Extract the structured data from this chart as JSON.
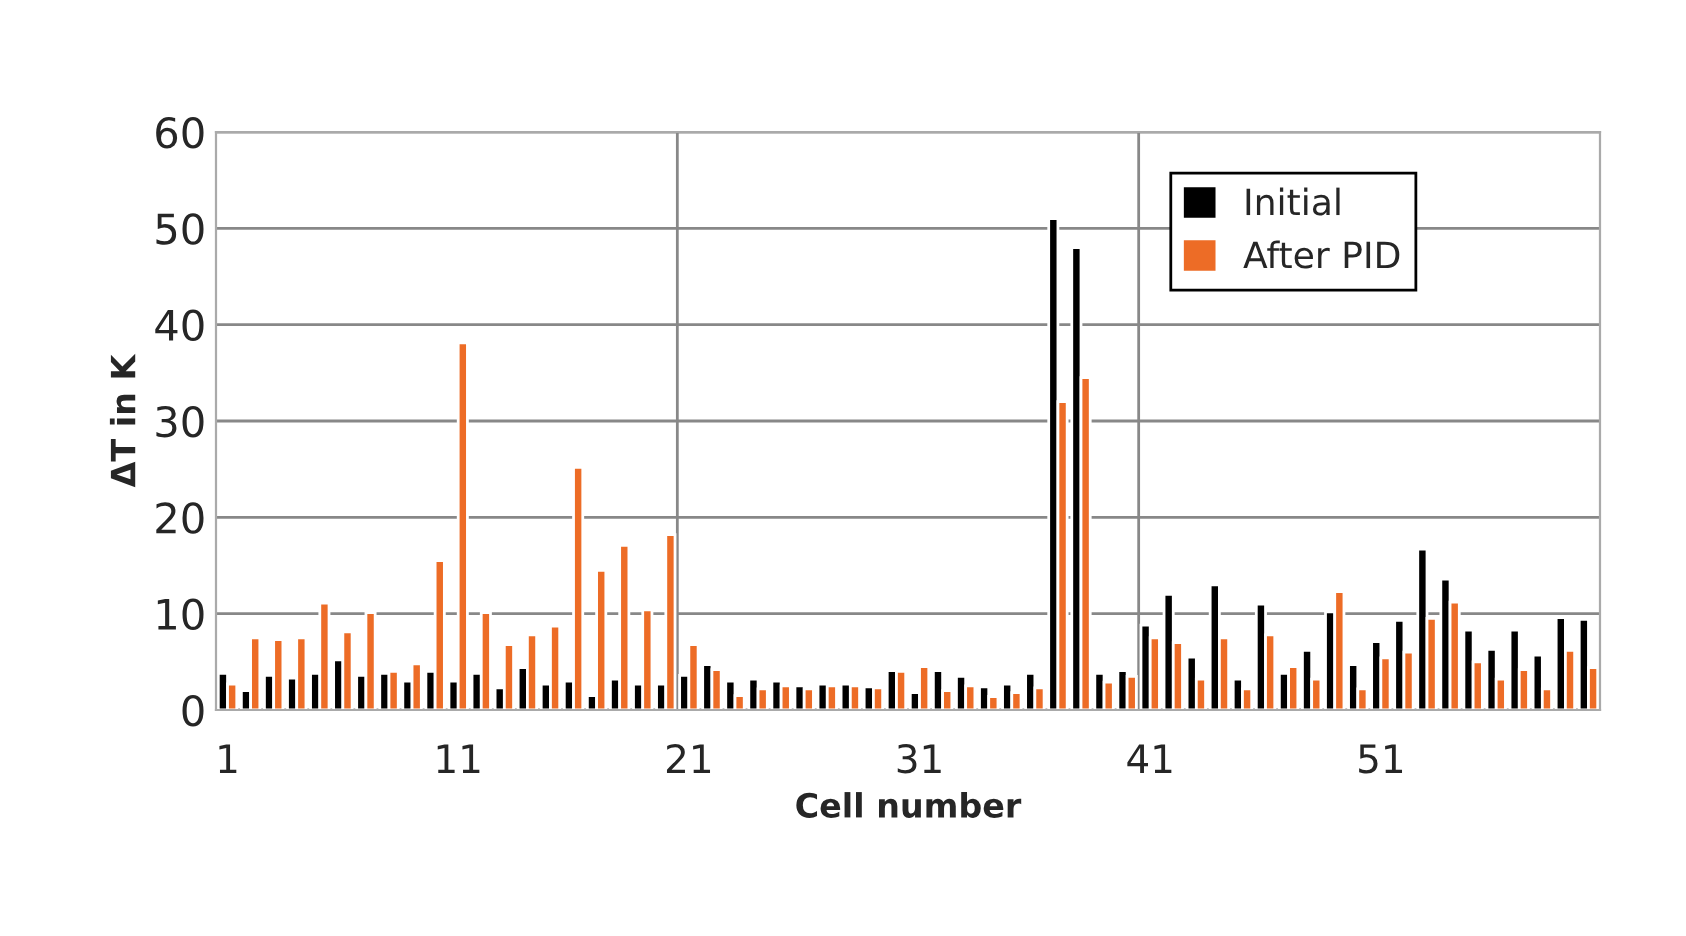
{
  "chart_data": {
    "type": "bar",
    "xlabel": "Cell number",
    "ylabel": "ΔT in K",
    "categories": [
      "1",
      null,
      null,
      null,
      null,
      null,
      null,
      null,
      null,
      null,
      "11",
      null,
      null,
      null,
      null,
      null,
      null,
      null,
      null,
      null,
      "21",
      null,
      null,
      null,
      null,
      null,
      null,
      null,
      null,
      null,
      "31",
      null,
      null,
      null,
      null,
      null,
      null,
      null,
      null,
      null,
      "41",
      null,
      null,
      null,
      null,
      null,
      null,
      null,
      null,
      null,
      "51",
      null,
      null,
      null,
      null,
      null,
      null,
      null,
      null,
      null
    ],
    "series": [
      {
        "name": "Initial",
        "color": "#000000",
        "values": [
          3.8,
          2.0,
          3.6,
          3.3,
          3.8,
          5.2,
          3.6,
          3.8,
          3.0,
          4.0,
          3.0,
          3.8,
          2.3,
          4.4,
          2.7,
          3.0,
          1.5,
          3.2,
          2.7,
          2.7,
          3.6,
          4.7,
          3.0,
          3.2,
          3.0,
          2.5,
          2.7,
          2.7,
          2.4,
          4.1,
          1.8,
          4.1,
          3.5,
          2.4,
          2.7,
          3.8,
          51.0,
          48.0,
          3.8,
          4.1,
          8.8,
          12.0,
          5.5,
          13.0,
          3.2,
          11.0,
          3.8,
          6.2,
          10.2,
          4.7,
          7.1,
          9.3,
          16.7,
          13.6,
          8.3,
          6.3,
          8.3,
          5.7,
          9.6,
          9.4
        ]
      },
      {
        "name": "After PID",
        "color": "#ed6c26",
        "values": [
          2.7,
          7.5,
          7.3,
          7.5,
          11.1,
          8.1,
          10.1,
          4.0,
          4.8,
          15.5,
          38.1,
          10.1,
          6.8,
          7.8,
          8.7,
          25.2,
          14.5,
          17.1,
          10.4,
          18.2,
          6.8,
          4.2,
          1.5,
          2.2,
          2.5,
          2.2,
          2.5,
          2.5,
          2.3,
          4.0,
          4.5,
          2.0,
          2.5,
          1.4,
          1.8,
          2.3,
          32.0,
          34.5,
          2.9,
          3.5,
          7.5,
          7.0,
          3.2,
          7.5,
          2.2,
          7.8,
          4.5,
          3.2,
          12.3,
          2.2,
          5.4,
          6.0,
          9.5,
          11.2,
          5.0,
          3.2,
          4.2,
          2.2,
          6.2,
          4.4
        ]
      }
    ],
    "ylim": [
      0,
      60
    ],
    "yticks": [
      0,
      10,
      20,
      30,
      40,
      50,
      60
    ],
    "grid": true,
    "legend": "top right"
  }
}
